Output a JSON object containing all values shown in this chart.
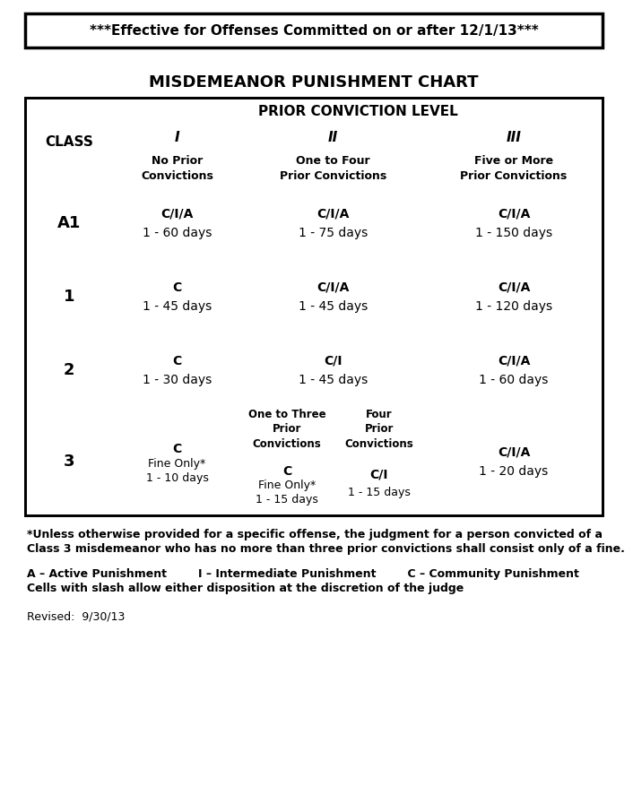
{
  "title_banner": "***Effective for Offenses Committed on or after 12/1/13***",
  "chart_title": "MISDEMEANOR PUNISHMENT CHART",
  "header_gray": "#b8b8b8",
  "cell_gray": "#c8c8c8",
  "cell_white": "#ffffff",
  "border_color": "#000000",
  "text_color": "#000000",
  "footnote1_line1": "*Unless otherwise provided for a specific offense, the judgment for a person convicted of a",
  "footnote1_line2": "Class 3 misdemeanor who has no more than three prior convictions shall consist only of a fine.",
  "footnote2_line1": "A – Active Punishment        I – Intermediate Punishment        C – Community Punishment",
  "footnote2_line2": "Cells with slash allow either disposition at the discretion of the judge",
  "revised": "Revised:  9/30/13"
}
